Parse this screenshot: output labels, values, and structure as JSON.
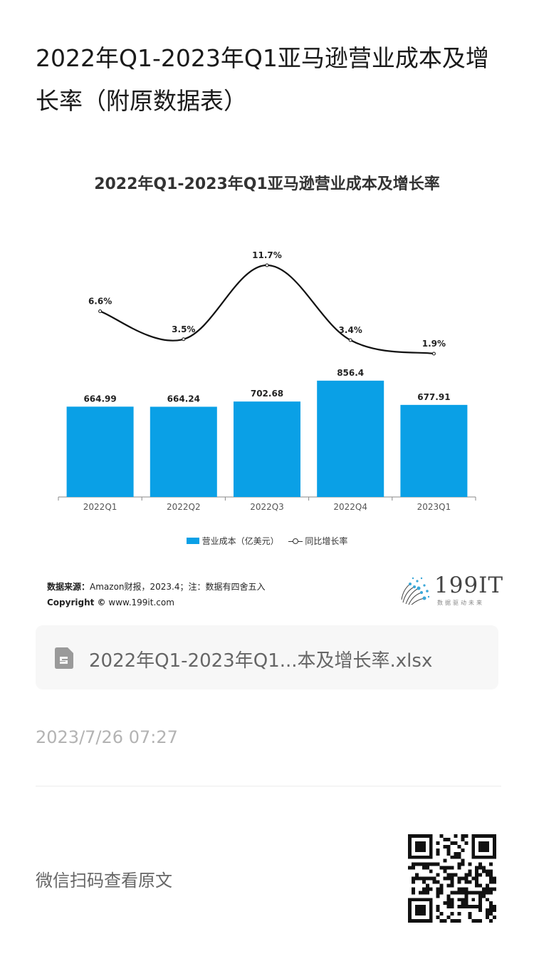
{
  "article": {
    "title": "2022年Q1-2023年Q1亚马逊营业成本及增长率（附原数据表）"
  },
  "chart_data": {
    "type": "bar+line",
    "title": "2022年Q1-2023年Q1亚马逊营业成本及增长率",
    "categories": [
      "2022Q1",
      "2022Q2",
      "2022Q3",
      "2022Q4",
      "2023Q1"
    ],
    "series": [
      {
        "name": "营业成本（亿美元）",
        "type": "bar",
        "color": "#0aa0e6",
        "values": [
          664.99,
          664.24,
          702.68,
          856.4,
          677.91
        ],
        "labels": [
          "664.99",
          "664.24",
          "702.68",
          "856.4",
          "677.91"
        ]
      },
      {
        "name": "同比增长率",
        "type": "line",
        "color": "#111111",
        "values": [
          6.6,
          3.5,
          11.7,
          3.4,
          1.9
        ],
        "labels": [
          "6.6%",
          "3.5%",
          "11.7%",
          "3.4%",
          "1.9%"
        ]
      }
    ],
    "legend_position": "bottom",
    "grid": false
  },
  "source": {
    "label": "数据来源：",
    "text": "Amazon财报，2023.4；注：数据有四舍五入",
    "copyright_label": "Copyright ©",
    "copyright_text": "www.199it.com"
  },
  "logo": {
    "text": "199IT",
    "tagline": "数据驱动未来"
  },
  "file": {
    "icon": "spreadsheet-file-icon",
    "name": "2022年Q1-2023年Q1...本及增长率.xlsx"
  },
  "timestamp": "2023/7/26 07:27",
  "qr": {
    "caption": "微信扫码查看原文",
    "icon": "qr-code-icon"
  }
}
